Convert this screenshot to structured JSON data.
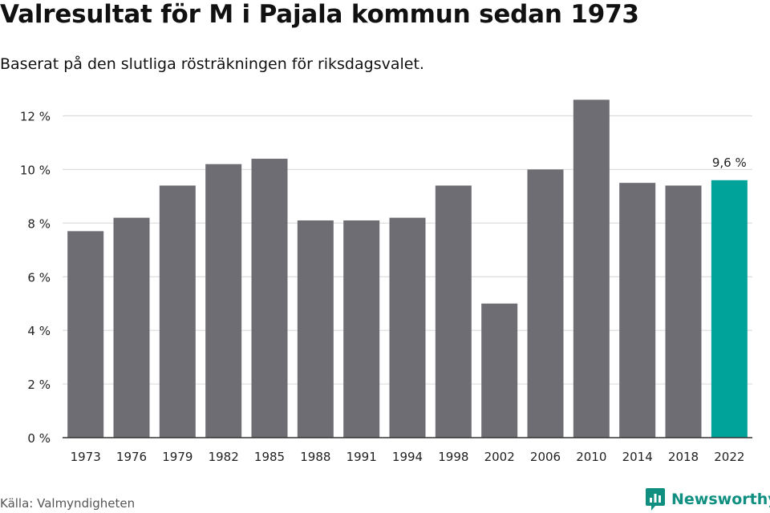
{
  "title": "Valresultat för M i Pajala kommun sedan 1973",
  "subtitle": "Baserat på den slutliga rösträkningen för riksdagsvalet.",
  "source": "Källa: Valmyndigheten",
  "brand": {
    "name": "Newsworthy",
    "icon": "newsworthy-logo-icon"
  },
  "colors": {
    "bar": "#6e6d73",
    "highlight": "#00a39a",
    "grid": "#dcdcdc",
    "axis": "#333333",
    "brand": "#0e8f80"
  },
  "chart_data": {
    "type": "bar",
    "categories": [
      "1973",
      "1976",
      "1979",
      "1982",
      "1985",
      "1988",
      "1991",
      "1994",
      "1998",
      "2002",
      "2006",
      "2010",
      "2014",
      "2018",
      "2022"
    ],
    "values": [
      7.7,
      8.2,
      9.4,
      10.2,
      10.4,
      8.1,
      8.1,
      8.2,
      9.4,
      5.0,
      10.0,
      12.6,
      9.5,
      9.4,
      9.6
    ],
    "unit": "%",
    "ylim": [
      0,
      12
    ],
    "yticks": [
      0,
      2,
      4,
      6,
      8,
      10,
      12
    ],
    "ytick_labels": [
      "0 %",
      "2 %",
      "4 %",
      "6 %",
      "8 %",
      "10 %",
      "12 %"
    ],
    "highlight": {
      "category": "2022",
      "label": "9,6 %"
    },
    "grid": true,
    "legend": "none",
    "xlabel": "",
    "ylabel": ""
  }
}
